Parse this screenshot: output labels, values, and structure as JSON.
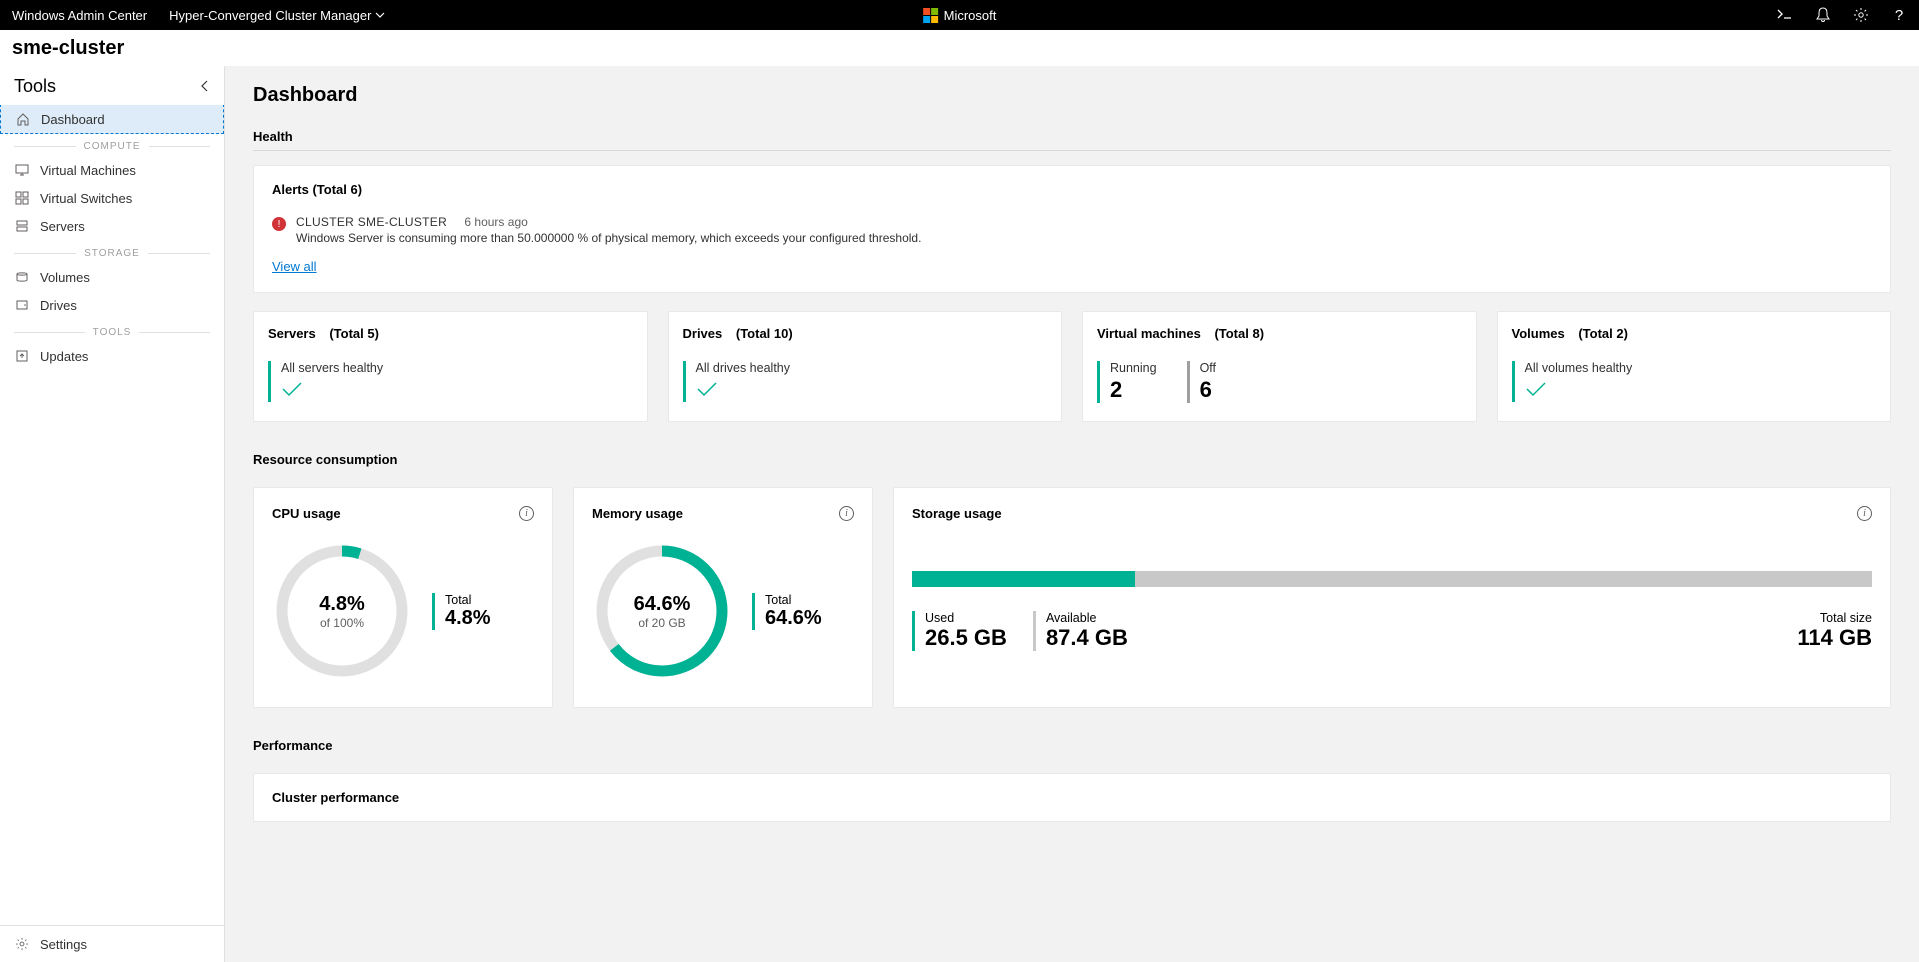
{
  "topbar": {
    "app_name": "Windows Admin Center",
    "dropdown_label": "Hyper-Converged Cluster Manager",
    "brand": "Microsoft"
  },
  "cluster_name": "sme-cluster",
  "sidebar": {
    "title": "Tools",
    "items": {
      "dashboard": "Dashboard",
      "compute_section": "COMPUTE",
      "vms": "Virtual Machines",
      "vswitches": "Virtual Switches",
      "servers": "Servers",
      "storage_section": "STORAGE",
      "volumes": "Volumes",
      "drives": "Drives",
      "tools_section": "TOOLS",
      "updates": "Updates",
      "settings": "Settings"
    }
  },
  "dashboard": {
    "title": "Dashboard",
    "health_title": "Health",
    "alerts": {
      "header": "Alerts (Total 6)",
      "cluster": "CLUSTER SME-CLUSTER",
      "time": "6 hours ago",
      "desc": "Windows Server is consuming more than 50.000000 % of physical memory, which exceeds your configured threshold.",
      "view_all": "View all"
    },
    "status": {
      "servers": {
        "title": "Servers",
        "total": "(Total 5)",
        "label": "All servers healthy"
      },
      "drives": {
        "title": "Drives",
        "total": "(Total 10)",
        "label": "All drives healthy"
      },
      "vms": {
        "title": "Virtual machines",
        "total": "(Total 8)",
        "running_label": "Running",
        "running_val": "2",
        "off_label": "Off",
        "off_val": "6"
      },
      "volumes": {
        "title": "Volumes",
        "total": "(Total 2)",
        "label": "All volumes healthy"
      }
    },
    "resource_title": "Resource consumption",
    "cpu": {
      "title": "CPU usage",
      "pct": "4.8%",
      "sub": "of 100%",
      "total_label": "Total",
      "total_val": "4.8%",
      "gauge_pct": 4.8,
      "color": "#00b294",
      "bg": "#e0e0e0"
    },
    "memory": {
      "title": "Memory usage",
      "pct": "64.6%",
      "sub": "of 20 GB",
      "total_label": "Total",
      "total_val": "64.6%",
      "gauge_pct": 64.6,
      "color": "#00b294",
      "bg": "#e0e0e0"
    },
    "storage": {
      "title": "Storage usage",
      "used_label": "Used",
      "used_val": "26.5 GB",
      "avail_label": "Available",
      "avail_val": "87.4 GB",
      "total_label": "Total size",
      "total_val": "114 GB",
      "fill_pct": 23.2,
      "color": "#00b294",
      "bg": "#c8c8c8"
    },
    "perf_title": "Performance",
    "perf_sub": "Cluster performance"
  }
}
